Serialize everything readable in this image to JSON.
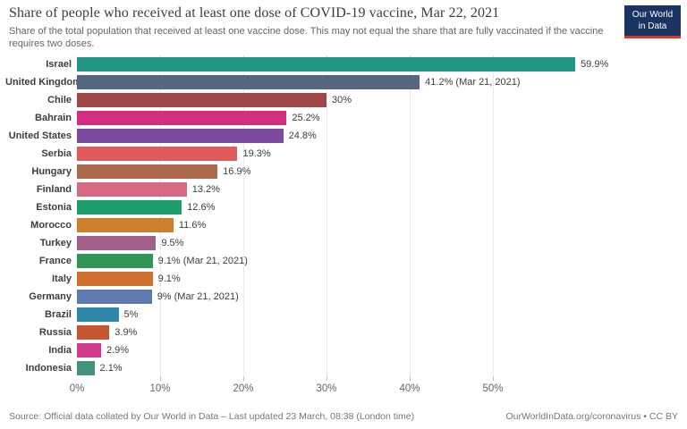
{
  "header": {
    "title": "Share of people who received at least one dose of COVID-19 vaccine, Mar 22, 2021",
    "subtitle": "Share of the total population that received at least one vaccine dose. This may not equal the share that are fully vaccinated if the vaccine requires two doses."
  },
  "logo": {
    "line1": "Our World",
    "line2": "in Data"
  },
  "chart_data": {
    "type": "bar",
    "orientation": "horizontal",
    "title": "Share of people who received at least one dose of COVID-19 vaccine, Mar 22, 2021",
    "unit": "%",
    "xlim": [
      0,
      60
    ],
    "grid": "vertical-dotted",
    "x_ticks": [
      {
        "value": 0,
        "label": "0%"
      },
      {
        "value": 10,
        "label": "10%"
      },
      {
        "value": 20,
        "label": "20%"
      },
      {
        "value": 30,
        "label": "30%"
      },
      {
        "value": 40,
        "label": "40%"
      },
      {
        "value": 50,
        "label": "50%"
      }
    ],
    "series": [
      {
        "country": "Israel",
        "value": 59.9,
        "label": "59.9%",
        "color": "#209687"
      },
      {
        "country": "United Kingdom",
        "value": 41.2,
        "label": "41.2% (Mar 21, 2021)",
        "color": "#556780"
      },
      {
        "country": "Chile",
        "value": 30.0,
        "label": "30%",
        "color": "#9e484a"
      },
      {
        "country": "Bahrain",
        "value": 25.2,
        "label": "25.2%",
        "color": "#d42e7f"
      },
      {
        "country": "United States",
        "value": 24.8,
        "label": "24.8%",
        "color": "#7c4ba0"
      },
      {
        "country": "Serbia",
        "value": 19.3,
        "label": "19.3%",
        "color": "#e05c5c"
      },
      {
        "country": "Hungary",
        "value": 16.9,
        "label": "16.9%",
        "color": "#a9694a"
      },
      {
        "country": "Finland",
        "value": 13.2,
        "label": "13.2%",
        "color": "#d76984"
      },
      {
        "country": "Estonia",
        "value": 12.6,
        "label": "12.6%",
        "color": "#1e9e6e"
      },
      {
        "country": "Morocco",
        "value": 11.6,
        "label": "11.6%",
        "color": "#cc7e2a"
      },
      {
        "country": "Turkey",
        "value": 9.5,
        "label": "9.5%",
        "color": "#a05f88"
      },
      {
        "country": "France",
        "value": 9.1,
        "label": "9.1% (Mar 21, 2021)",
        "color": "#2f9655"
      },
      {
        "country": "Italy",
        "value": 9.1,
        "label": "9.1%",
        "color": "#d0702f"
      },
      {
        "country": "Germany",
        "value": 9.0,
        "label": "9% (Mar 21, 2021)",
        "color": "#5e79ae"
      },
      {
        "country": "Brazil",
        "value": 5.0,
        "label": "5%",
        "color": "#2e86ab"
      },
      {
        "country": "Russia",
        "value": 3.9,
        "label": "3.9%",
        "color": "#c35633"
      },
      {
        "country": "India",
        "value": 2.9,
        "label": "2.9%",
        "color": "#d43a8d"
      },
      {
        "country": "Indonesia",
        "value": 2.1,
        "label": "2.1%",
        "color": "#46917e"
      }
    ]
  },
  "footer": {
    "source": "Source: Official data collated by Our World in Data – Last updated 23 March, 08:38 (London time)",
    "link": "OurWorldInData.org/coronavirus • CC BY"
  }
}
